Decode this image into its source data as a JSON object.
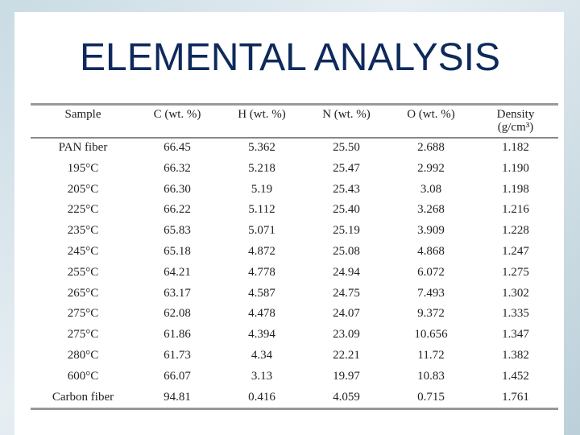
{
  "title": "ELEMENTAL ANALYSIS",
  "table": {
    "header": [
      "Sample",
      "C (wt. %)",
      "H (wt. %)",
      "N (wt. %)",
      "O (wt. %)",
      [
        "Density",
        "(g/cm³)"
      ]
    ],
    "rows": [
      [
        "PAN fiber",
        "66.45",
        "5.362",
        "25.50",
        "2.688",
        "1.182"
      ],
      [
        "195°C",
        "66.32",
        "5.218",
        "25.47",
        "2.992",
        "1.190"
      ],
      [
        "205°C",
        "66.30",
        "5.19",
        "25.43",
        "3.08",
        "1.198"
      ],
      [
        "225°C",
        "66.22",
        "5.112",
        "25.40",
        "3.268",
        "1.216"
      ],
      [
        "235°C",
        "65.83",
        "5.071",
        "25.19",
        "3.909",
        "1.228"
      ],
      [
        "245°C",
        "65.18",
        "4.872",
        "25.08",
        "4.868",
        "1.247"
      ],
      [
        "255°C",
        "64.21",
        "4.778",
        "24.94",
        "6.072",
        "1.275"
      ],
      [
        "265°C",
        "63.17",
        "4.587",
        "24.75",
        "7.493",
        "1.302"
      ],
      [
        "275°C",
        "62.08",
        "4.478",
        "24.07",
        "9.372",
        "1.335"
      ],
      [
        "275°C",
        "61.86",
        "4.394",
        "23.09",
        "10.656",
        "1.347"
      ],
      [
        "280°C",
        "61.73",
        "4.34",
        "22.21",
        "11.72",
        "1.382"
      ],
      [
        "600°C",
        "66.07",
        "3.13",
        "19.97",
        "10.83",
        "1.452"
      ],
      [
        "Carbon fiber",
        "94.81",
        "0.416",
        "4.059",
        "0.715",
        "1.761"
      ]
    ]
  }
}
